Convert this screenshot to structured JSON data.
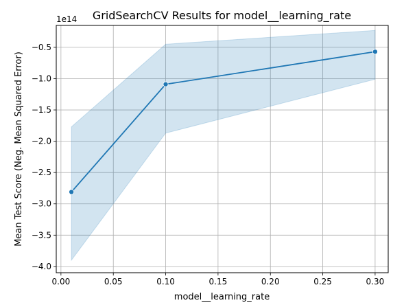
{
  "chart_data": {
    "type": "line",
    "title": "GridSearchCV Results for model__learning_rate",
    "xlabel": "model__learning_rate",
    "ylabel": "Mean Test Score (Neg. Mean Squared Error)",
    "y_offset_label": "1e14",
    "y_scale_factor": 100000000000000.0,
    "x": [
      0.01,
      0.1,
      0.3
    ],
    "series": [
      {
        "values": [
          -2.81,
          -1.09,
          -0.57
        ],
        "band_upper": [
          -1.77,
          -0.45,
          -0.23
        ],
        "band_lower": [
          -3.9,
          -1.87,
          -1.01
        ],
        "color": "#1f77b4",
        "band_color": "#1f77b4"
      }
    ],
    "xlim": [
      -0.0045,
      0.3125
    ],
    "ylim": [
      -4.1,
      -0.15
    ],
    "x_ticks": [
      "0.00",
      "0.05",
      "0.10",
      "0.15",
      "0.20",
      "0.25",
      "0.30"
    ],
    "x_tick_values": [
      0,
      0.05,
      0.1,
      0.15,
      0.2,
      0.25,
      0.3
    ],
    "y_ticks": [
      "−4.0",
      "−3.5",
      "−3.0",
      "−2.5",
      "−2.0",
      "−1.5",
      "−1.0",
      "−0.5"
    ],
    "y_tick_values": [
      -4.0,
      -3.5,
      -3.0,
      -2.5,
      -2.0,
      -1.5,
      -1.0,
      -0.5
    ],
    "grid": true,
    "grid_color": "#b0b0b0"
  }
}
